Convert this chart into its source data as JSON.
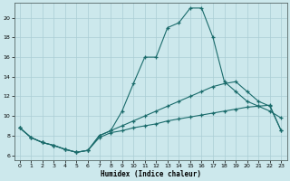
{
  "xlabel": "Humidex (Indice chaleur)",
  "xlim": [
    -0.5,
    23.5
  ],
  "ylim": [
    5.5,
    21.5
  ],
  "yticks": [
    6,
    8,
    10,
    12,
    14,
    16,
    18,
    20
  ],
  "xticks": [
    0,
    1,
    2,
    3,
    4,
    5,
    6,
    7,
    8,
    9,
    10,
    11,
    12,
    13,
    14,
    15,
    16,
    17,
    18,
    19,
    20,
    21,
    22,
    23
  ],
  "bg_color": "#cce8ec",
  "grid_color": "#aacdd4",
  "line_color": "#1a6b6b",
  "line1_x": [
    0,
    1,
    2,
    3,
    4,
    5,
    6,
    7,
    8,
    9,
    10,
    11,
    12,
    13,
    14,
    15,
    16,
    17,
    18,
    19,
    20,
    21,
    22,
    23
  ],
  "line1_y": [
    8.8,
    7.8,
    7.3,
    7.0,
    6.6,
    6.3,
    6.5,
    8.0,
    8.5,
    10.5,
    13.3,
    16.0,
    16.0,
    19.0,
    19.5,
    21.0,
    21.0,
    18.0,
    13.5,
    12.5,
    11.5,
    11.0,
    10.5,
    9.8
  ],
  "line2_x": [
    0,
    1,
    2,
    3,
    4,
    5,
    6,
    7,
    8,
    9,
    10,
    11,
    12,
    13,
    14,
    15,
    16,
    17,
    18,
    19,
    20,
    21,
    22,
    23
  ],
  "line2_y": [
    8.8,
    7.8,
    7.3,
    7.0,
    6.6,
    6.3,
    6.5,
    8.0,
    8.5,
    9.0,
    9.5,
    10.0,
    10.5,
    11.0,
    11.5,
    12.0,
    12.5,
    13.0,
    13.3,
    13.5,
    12.5,
    11.5,
    11.0,
    8.5
  ],
  "line3_x": [
    0,
    1,
    2,
    3,
    4,
    5,
    6,
    7,
    8,
    9,
    10,
    11,
    12,
    13,
    14,
    15,
    16,
    17,
    18,
    19,
    20,
    21,
    22,
    23
  ],
  "line3_y": [
    8.8,
    7.8,
    7.3,
    7.0,
    6.6,
    6.3,
    6.5,
    7.8,
    8.3,
    8.5,
    8.8,
    9.0,
    9.2,
    9.5,
    9.7,
    9.9,
    10.1,
    10.3,
    10.5,
    10.7,
    10.9,
    11.0,
    11.1,
    8.5
  ]
}
